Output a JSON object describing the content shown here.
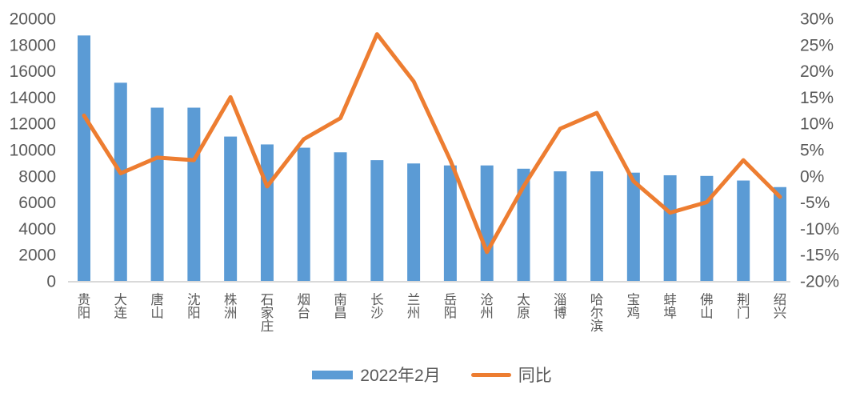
{
  "chart_data": {
    "type": "bar",
    "subtype": "combo-bar-line-dual-axis",
    "title": "",
    "categories": [
      "贵阳",
      "大连",
      "唐山",
      "沈阳",
      "株洲",
      "石家庄",
      "烟台",
      "南昌",
      "长沙",
      "兰州",
      "岳阳",
      "沧州",
      "太原",
      "淄博",
      "哈尔滨",
      "宝鸡",
      "蚌埠",
      "佛山",
      "荆门",
      "绍兴"
    ],
    "series": [
      {
        "name": "2022年2月",
        "type": "bar",
        "axis": "left",
        "color": "#5B9BD5",
        "values": [
          18700,
          15100,
          13200,
          13200,
          11000,
          10400,
          10150,
          9800,
          9200,
          8950,
          8800,
          8800,
          8550,
          8350,
          8350,
          8250,
          8050,
          8000,
          7650,
          7150
        ]
      },
      {
        "name": "同比",
        "type": "line",
        "axis": "right",
        "color": "#ED7D31",
        "values_percent": [
          11.5,
          0.5,
          3.5,
          3,
          15,
          -2,
          7,
          11,
          27,
          18,
          3,
          -14.5,
          -2,
          9,
          12,
          -1,
          -7,
          -5,
          3,
          -4
        ]
      }
    ],
    "left_axis": {
      "min": 0,
      "max": 20000,
      "step": 2000,
      "ticks": [
        0,
        2000,
        4000,
        6000,
        8000,
        10000,
        12000,
        14000,
        16000,
        18000,
        20000
      ],
      "tick_labels": [
        "0",
        "2000",
        "4000",
        "6000",
        "8000",
        "10000",
        "12000",
        "14000",
        "16000",
        "18000",
        "20000"
      ]
    },
    "right_axis": {
      "min_percent": -20,
      "max_percent": 30,
      "step_percent": 5,
      "ticks_percent": [
        -20,
        -15,
        -10,
        -5,
        0,
        5,
        10,
        15,
        20,
        25,
        30
      ],
      "tick_labels": [
        "-20%",
        "-15%",
        "-10%",
        "-5%",
        "0%",
        "5%",
        "10%",
        "15%",
        "20%",
        "25%",
        "30%"
      ]
    },
    "grid": "off",
    "baseline_color": "#D9D9D9",
    "text_color": "#595959",
    "legend_position": "bottom-center"
  },
  "legend": {
    "bar_label": "2022年2月",
    "line_label": "同比"
  },
  "colors": {
    "bar": "#5B9BD5",
    "line": "#ED7D31",
    "axis_text": "#595959",
    "axis_line": "#D9D9D9",
    "background": "#FFFFFF"
  }
}
